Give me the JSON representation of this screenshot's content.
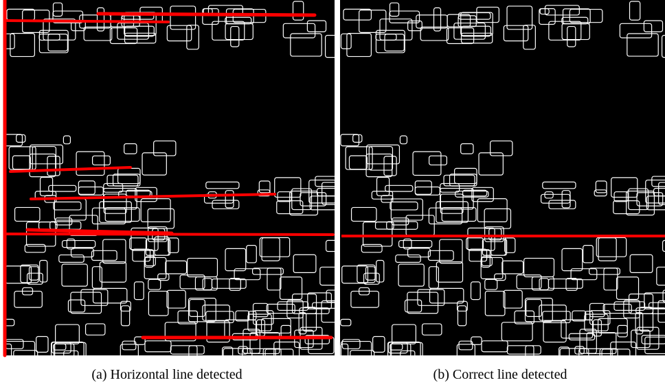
{
  "panels": [
    {
      "caption": "(a) Horizontal line detected"
    },
    {
      "caption": "(b) Correct line detected"
    }
  ]
}
